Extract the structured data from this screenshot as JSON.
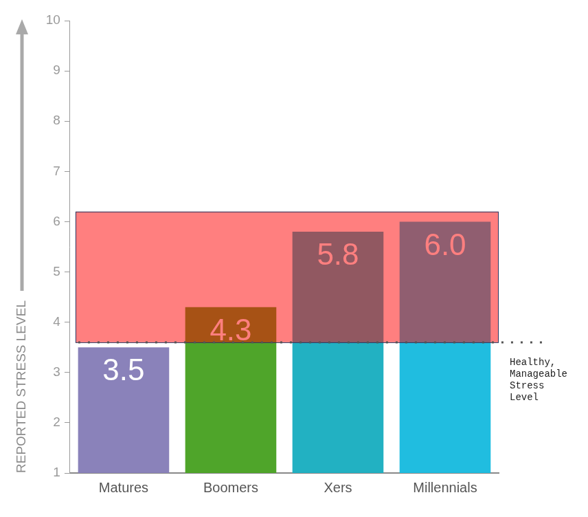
{
  "chart_data": {
    "type": "bar",
    "categories": [
      "Matures",
      "Boomers",
      "Xers",
      "Millennials"
    ],
    "values": [
      3.5,
      4.3,
      5.8,
      6.0
    ],
    "value_labels": [
      "3.5",
      "4.3",
      "5.8",
      "6.0"
    ],
    "colors": [
      "#8a82ba",
      "#4fa52a",
      "#22b1c2",
      "#20bde0"
    ],
    "y_label": "REPORTED STRESS LEVEL",
    "ylim": [
      1,
      10
    ],
    "yticks": [
      1,
      2,
      3,
      4,
      5,
      6,
      7,
      8,
      9,
      10
    ],
    "grid": false,
    "data_labels": true,
    "reference_line": {
      "value": 3.6,
      "label": "Healthy, Manageable Stress Level"
    },
    "highlight_band": {
      "from": 3.6,
      "to": 6.2
    }
  }
}
